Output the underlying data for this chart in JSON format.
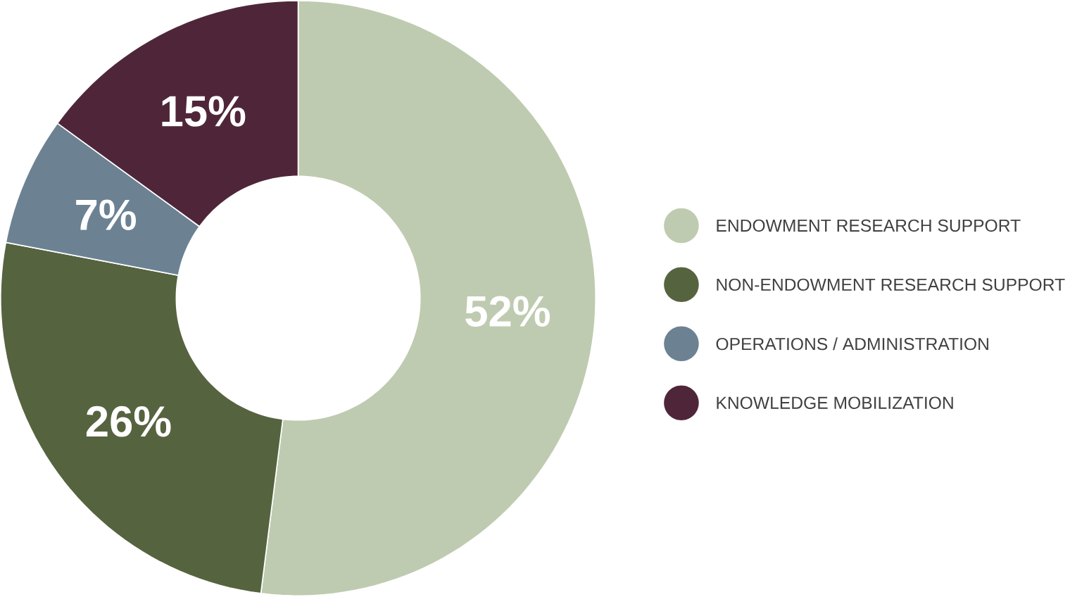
{
  "chart_data": {
    "type": "donut",
    "categories": [
      "ENDOWMENT RESEARCH SUPPORT",
      "NON-ENDOWMENT RESEARCH SUPPORT",
      "OPERATIONS / ADMINISTRATION",
      "KNOWLEDGE MOBILIZATION"
    ],
    "values": [
      52,
      26,
      7,
      15
    ],
    "value_labels": [
      "52%",
      "26%",
      "7%",
      "15%"
    ],
    "colors": [
      "#bfcbb0",
      "#56633f",
      "#6c8293",
      "#4f2639"
    ],
    "legend": "right"
  }
}
